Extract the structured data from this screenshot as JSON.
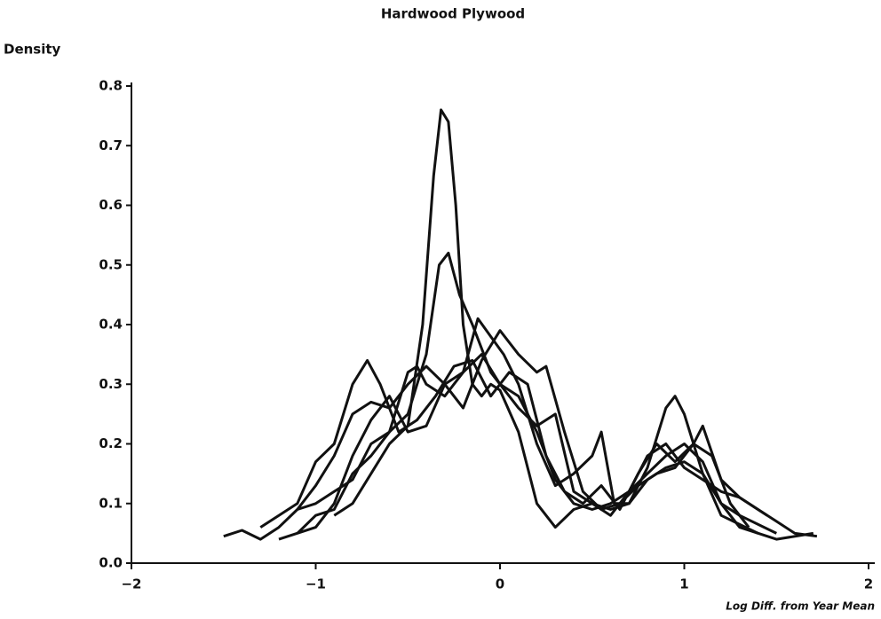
{
  "chart_data": {
    "type": "line",
    "title": "Hardwood Plywood",
    "y_label": "Density",
    "x_label": "Log Diff. from Year Mean",
    "xlim": [
      -2,
      2
    ],
    "ylim": [
      0,
      0.8
    ],
    "xticks": [
      {
        "value": -2,
        "label": "−2"
      },
      {
        "value": -1,
        "label": "−1"
      },
      0,
      1,
      2
    ],
    "yticks": [
      {
        "value": 0,
        "label": "0.0"
      },
      0.1,
      0.2,
      0.3,
      0.4,
      0.5,
      0.6,
      0.7,
      0.8
    ],
    "grid": false,
    "series": [
      {
        "color": "#111111",
        "x": [
          -0.9,
          -0.8,
          -0.7,
          -0.6,
          -0.5,
          -0.42,
          -0.36,
          -0.32,
          -0.28,
          -0.24,
          -0.2,
          -0.15,
          -0.1,
          -0.05,
          0,
          0.1,
          0.2,
          0.3,
          0.4,
          0.5,
          0.6,
          0.7,
          0.8,
          0.9,
          1.0,
          1.1,
          1.2,
          1.4
        ],
        "values": [
          0.08,
          0.1,
          0.15,
          0.2,
          0.23,
          0.4,
          0.65,
          0.76,
          0.74,
          0.6,
          0.4,
          0.3,
          0.28,
          0.3,
          0.29,
          0.22,
          0.1,
          0.06,
          0.09,
          0.1,
          0.09,
          0.1,
          0.14,
          0.16,
          0.17,
          0.15,
          0.08,
          0.05
        ]
      },
      {
        "color": "#111111",
        "x": [
          -1.5,
          -1.4,
          -1.3,
          -1.2,
          -1.1,
          -1.0,
          -0.9,
          -0.8,
          -0.7,
          -0.6,
          -0.5,
          -0.4,
          -0.33,
          -0.28,
          -0.22,
          -0.15,
          -0.1,
          -0.05,
          0,
          0.1,
          0.2,
          0.3,
          0.4,
          0.5,
          0.6,
          0.7,
          0.8,
          0.9,
          1.0,
          1.1,
          1.2,
          1.3,
          1.5
        ],
        "values": [
          0.045,
          0.055,
          0.04,
          0.06,
          0.09,
          0.1,
          0.12,
          0.14,
          0.2,
          0.22,
          0.25,
          0.35,
          0.5,
          0.52,
          0.45,
          0.4,
          0.36,
          0.32,
          0.3,
          0.28,
          0.22,
          0.14,
          0.1,
          0.09,
          0.1,
          0.12,
          0.15,
          0.18,
          0.2,
          0.17,
          0.1,
          0.08,
          0.05
        ]
      },
      {
        "color": "#111111",
        "x": [
          -1.3,
          -1.2,
          -1.1,
          -1.0,
          -0.9,
          -0.8,
          -0.72,
          -0.65,
          -0.55,
          -0.45,
          -0.35,
          -0.25,
          -0.15,
          -0.05,
          0.05,
          0.15,
          0.25,
          0.35,
          0.45,
          0.55,
          0.65,
          0.75,
          0.85,
          0.95,
          1.05,
          1.15,
          1.25,
          1.35
        ],
        "values": [
          0.06,
          0.08,
          0.1,
          0.17,
          0.2,
          0.3,
          0.34,
          0.3,
          0.22,
          0.24,
          0.28,
          0.33,
          0.34,
          0.28,
          0.32,
          0.3,
          0.18,
          0.12,
          0.1,
          0.13,
          0.09,
          0.15,
          0.2,
          0.17,
          0.2,
          0.18,
          0.1,
          0.06
        ]
      },
      {
        "color": "#111111",
        "x": [
          -1.1,
          -1.0,
          -0.9,
          -0.8,
          -0.7,
          -0.6,
          -0.5,
          -0.4,
          -0.3,
          -0.2,
          -0.12,
          -0.05,
          0.02,
          0.1,
          0.2,
          0.3,
          0.4,
          0.5,
          0.55,
          0.62,
          0.7,
          0.8,
          0.9,
          0.95,
          1.0,
          1.1,
          1.2,
          1.3,
          1.5,
          1.7
        ],
        "values": [
          0.09,
          0.13,
          0.18,
          0.25,
          0.27,
          0.26,
          0.3,
          0.33,
          0.3,
          0.32,
          0.41,
          0.38,
          0.35,
          0.3,
          0.2,
          0.13,
          0.15,
          0.18,
          0.22,
          0.1,
          0.1,
          0.16,
          0.26,
          0.28,
          0.25,
          0.15,
          0.1,
          0.06,
          0.04,
          0.05
        ]
      },
      {
        "color": "#111111",
        "x": [
          -1.2,
          -1.0,
          -0.9,
          -0.8,
          -0.7,
          -0.6,
          -0.5,
          -0.4,
          -0.3,
          -0.2,
          -0.1,
          0,
          0.1,
          0.2,
          0.25,
          0.35,
          0.45,
          0.55,
          0.65,
          0.75,
          0.85,
          0.95,
          1.05,
          1.1,
          1.2,
          1.3,
          1.4,
          1.5,
          1.6,
          1.72
        ],
        "values": [
          0.04,
          0.06,
          0.1,
          0.18,
          0.24,
          0.28,
          0.22,
          0.23,
          0.3,
          0.26,
          0.34,
          0.39,
          0.35,
          0.32,
          0.33,
          0.22,
          0.12,
          0.09,
          0.1,
          0.13,
          0.15,
          0.16,
          0.2,
          0.23,
          0.14,
          0.11,
          0.09,
          0.07,
          0.05,
          0.045
        ]
      },
      {
        "color": "#111111",
        "x": [
          -1.1,
          -1.0,
          -0.9,
          -0.8,
          -0.7,
          -0.6,
          -0.5,
          -0.45,
          -0.4,
          -0.3,
          -0.2,
          -0.1,
          0,
          0.1,
          0.2,
          0.3,
          0.4,
          0.5,
          0.6,
          0.7,
          0.8,
          0.9,
          1.0,
          1.1,
          1.2,
          1.3,
          1.45
        ],
        "values": [
          0.05,
          0.08,
          0.09,
          0.15,
          0.18,
          0.22,
          0.32,
          0.33,
          0.3,
          0.28,
          0.32,
          0.35,
          0.3,
          0.26,
          0.23,
          0.25,
          0.12,
          0.1,
          0.08,
          0.12,
          0.18,
          0.2,
          0.16,
          0.14,
          0.12,
          0.11,
          0.08
        ]
      }
    ]
  }
}
